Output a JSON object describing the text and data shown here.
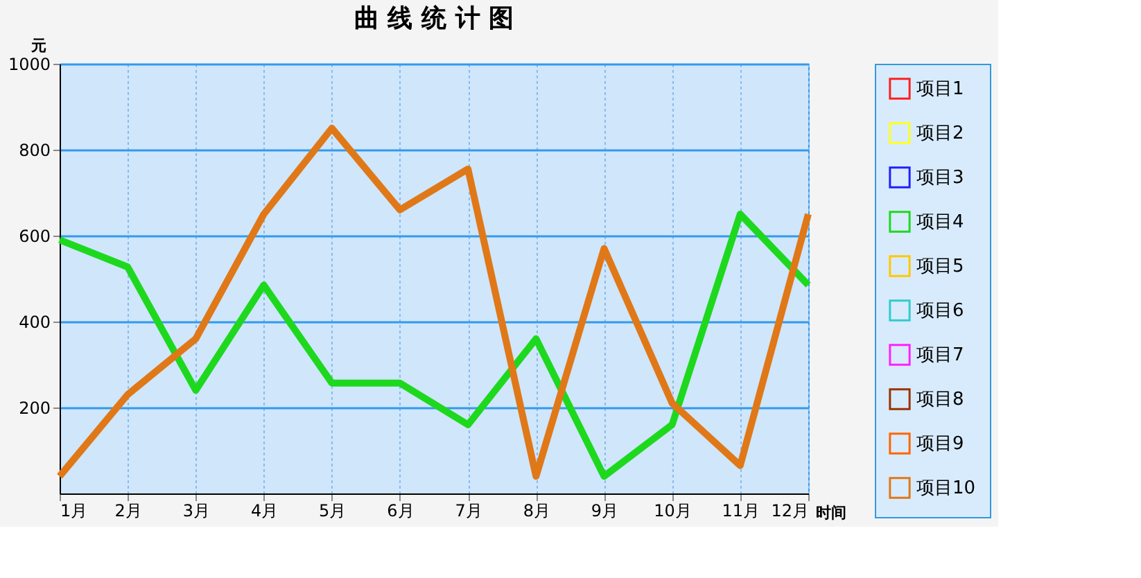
{
  "chart_data": {
    "type": "line",
    "title": "曲 线 统 计 图",
    "xlabel": "时间",
    "ylabel": "元",
    "categories": [
      "1月",
      "2月",
      "3月",
      "4月",
      "5月",
      "6月",
      "7月",
      "8月",
      "9月",
      "10月",
      "11月",
      "12月"
    ],
    "series": [
      {
        "name": "项目1",
        "color": "#ff2020",
        "values": [
          null,
          null,
          null,
          null,
          null,
          null,
          null,
          null,
          null,
          null,
          null,
          null
        ]
      },
      {
        "name": "项目2",
        "color": "#ffff20",
        "values": [
          null,
          null,
          null,
          null,
          null,
          null,
          null,
          null,
          null,
          null,
          null,
          null
        ]
      },
      {
        "name": "项目3",
        "color": "#2020ff",
        "values": [
          null,
          null,
          null,
          null,
          null,
          null,
          null,
          null,
          null,
          null,
          null,
          null
        ]
      },
      {
        "name": "项目4",
        "color": "#1ed81e",
        "values": [
          590,
          527,
          240,
          485,
          257,
          257,
          160,
          360,
          40,
          160,
          650,
          485
        ]
      },
      {
        "name": "项目5",
        "color": "#ffc800",
        "values": [
          null,
          null,
          null,
          null,
          null,
          null,
          null,
          null,
          null,
          null,
          null,
          null
        ]
      },
      {
        "name": "项目6",
        "color": "#30cccc",
        "values": [
          null,
          null,
          null,
          null,
          null,
          null,
          null,
          null,
          null,
          null,
          null,
          null
        ]
      },
      {
        "name": "项目7",
        "color": "#ff20ff",
        "values": [
          null,
          null,
          null,
          null,
          null,
          null,
          null,
          null,
          null,
          null,
          null,
          null
        ]
      },
      {
        "name": "项目8",
        "color": "#993300",
        "values": [
          null,
          null,
          null,
          null,
          null,
          null,
          null,
          null,
          null,
          null,
          null,
          null
        ]
      },
      {
        "name": "项目9",
        "color": "#ff6600",
        "values": [
          null,
          null,
          null,
          null,
          null,
          null,
          null,
          null,
          null,
          null,
          null,
          null
        ]
      },
      {
        "name": "项目10",
        "color": "#e07818",
        "values": [
          40,
          230,
          360,
          650,
          850,
          660,
          755,
          40,
          570,
          210,
          65,
          650
        ]
      }
    ],
    "ylim": [
      0,
      1000
    ],
    "yticks": [
      200,
      400,
      600,
      800,
      1000
    ],
    "grid": true,
    "legend": "right",
    "marker": "none",
    "line_style": "solid"
  }
}
